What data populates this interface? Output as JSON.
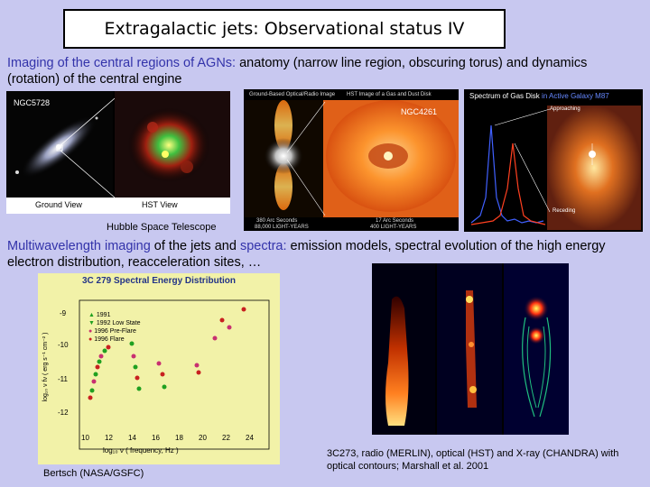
{
  "title": "Extragalactic jets: Observational status IV",
  "para1": {
    "highlight": "Imaging of the central regions of AGNs:",
    "rest": " anatomy (narrow line region, obscuring torus) and dynamics (rotation) of the central engine"
  },
  "ngc5728": {
    "label": "NGC5728",
    "ground_label": "Ground View",
    "hst_label": "HST View"
  },
  "ngc4261": {
    "label": "NGC4261",
    "left_header": "Ground-Based Optical/Radio Image",
    "right_header": "HST Image of a Gas and Dust Disk",
    "left_footer1": "380 Arc Seconds",
    "left_footer2": "88,000 LIGHT-YEARS",
    "right_footer1": "17 Arc Seconds",
    "right_footer2": "400 LIGHT-YEARS"
  },
  "m87": {
    "title_part1": "Spectrum of Gas Disk",
    "title_part2": "in Active Galaxy M87",
    "approaching": "Approaching",
    "receding": "Receding"
  },
  "hst_caption": "Hubble Space Telescope",
  "para2": {
    "highlight1": "Multiwavelength imaging",
    "mid": " of the jets and ",
    "highlight2": "spectra:",
    "rest": " emission models, spectral evolution of the high energy electron distribution, reacceleration sites, …"
  },
  "sed": {
    "title": "3C 279 Spectral Energy Distribution",
    "legend": [
      {
        "label": "1991",
        "color": "#20a020"
      },
      {
        "label": "1992 Low State",
        "color": "#20a020"
      },
      {
        "label": "1996 Pre-Flare",
        "color": "#c83070"
      },
      {
        "label": "1996 Flare",
        "color": "#c82020"
      }
    ],
    "y_ticks": [
      "-9",
      "-10",
      "-11",
      "-12"
    ],
    "x_ticks": [
      "10",
      "12",
      "14",
      "16",
      "18",
      "20",
      "22",
      "24"
    ],
    "ylabel": "log₁₀ ν fν  ( erg s⁻¹ cm⁻² )",
    "xlabel": "log₁₀ ν   ( frequency, Hz )"
  },
  "bertsch_caption": "Bertsch (NASA/GSFC)",
  "jet_caption": "3C273, radio (MERLIN), optical (HST) and X-ray (CHANDRA) with optical contours; Marshall et al. 2001",
  "colors": {
    "background": "#c8c8f0",
    "highlight_text": "#3333aa"
  }
}
